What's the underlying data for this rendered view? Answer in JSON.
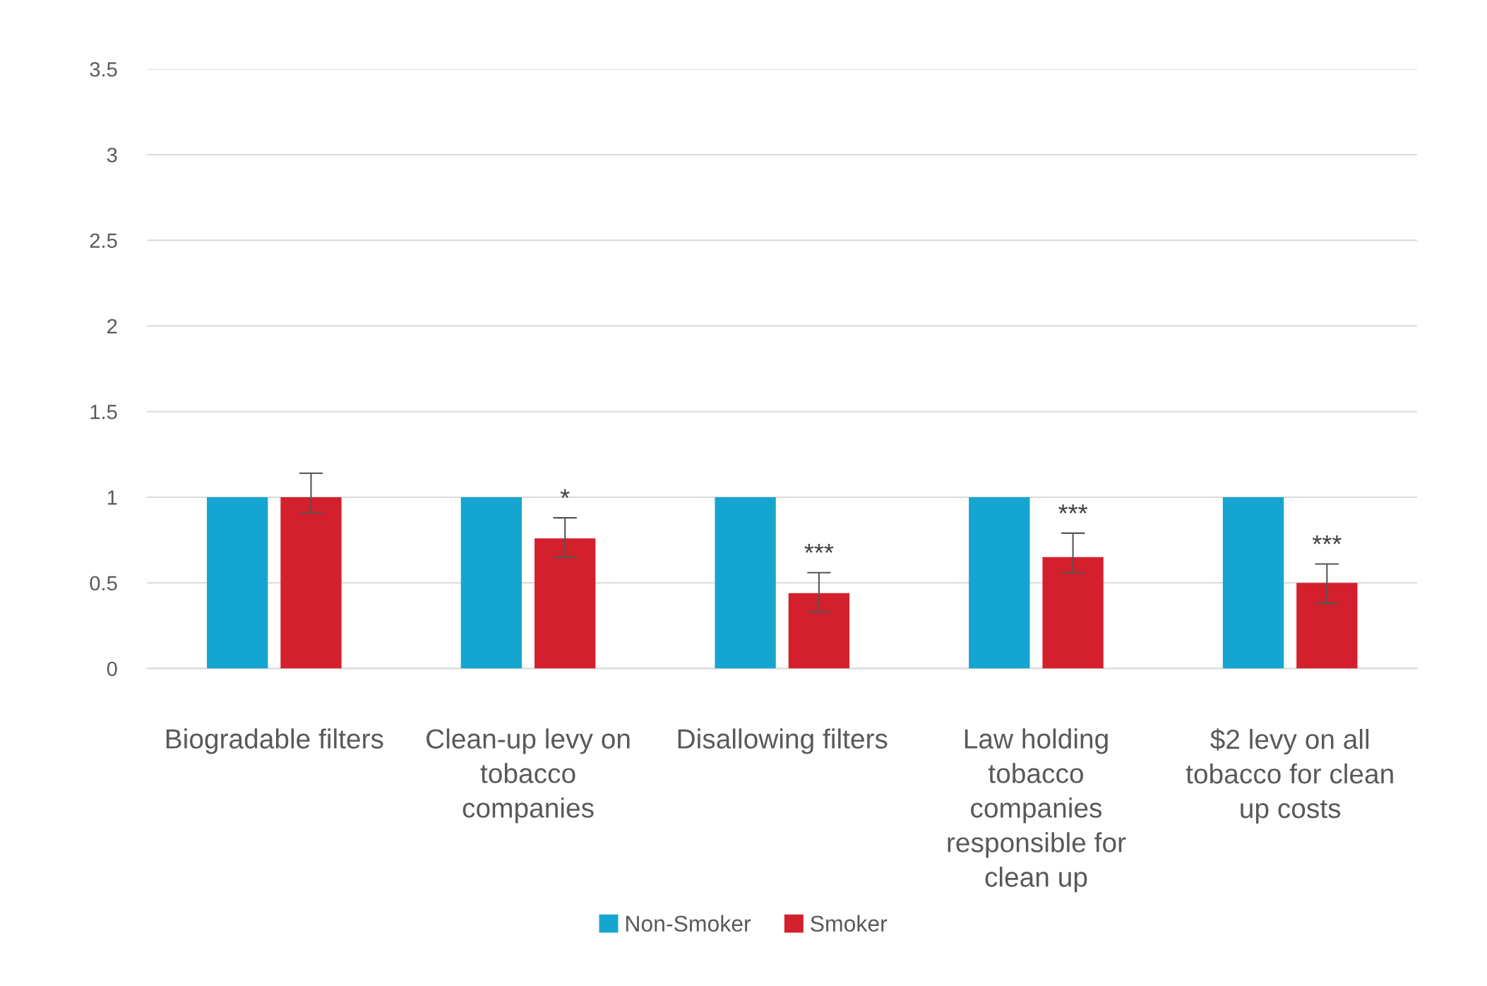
{
  "chart_data": {
    "type": "bar",
    "categories": [
      "Biogradable filters",
      "Clean-up levy on tobacco companies",
      "Disallowing filters",
      "Law holding tobacco companies responsible for clean up",
      "$2 levy on all tobacco for clean up costs"
    ],
    "series": [
      {
        "name": "Non-Smoker",
        "color": "#14a5d1",
        "values": [
          1,
          1,
          1,
          1,
          1
        ]
      },
      {
        "name": "Smoker",
        "color": "#d4202c",
        "values": [
          1.0,
          0.76,
          0.44,
          0.65,
          0.5
        ],
        "errors": [
          [
            0.91,
            1.14
          ],
          [
            0.65,
            0.88
          ],
          [
            0.33,
            0.56
          ],
          [
            0.56,
            0.79
          ],
          [
            0.38,
            0.61
          ]
        ]
      }
    ],
    "ylim": [
      0,
      3.5
    ],
    "yticks": [
      0,
      0.5,
      1,
      1.5,
      2,
      2.5,
      3,
      3.5
    ],
    "grid": "y",
    "legend": "bottom",
    "annotations": [
      "*",
      "***",
      "***",
      "***"
    ]
  }
}
